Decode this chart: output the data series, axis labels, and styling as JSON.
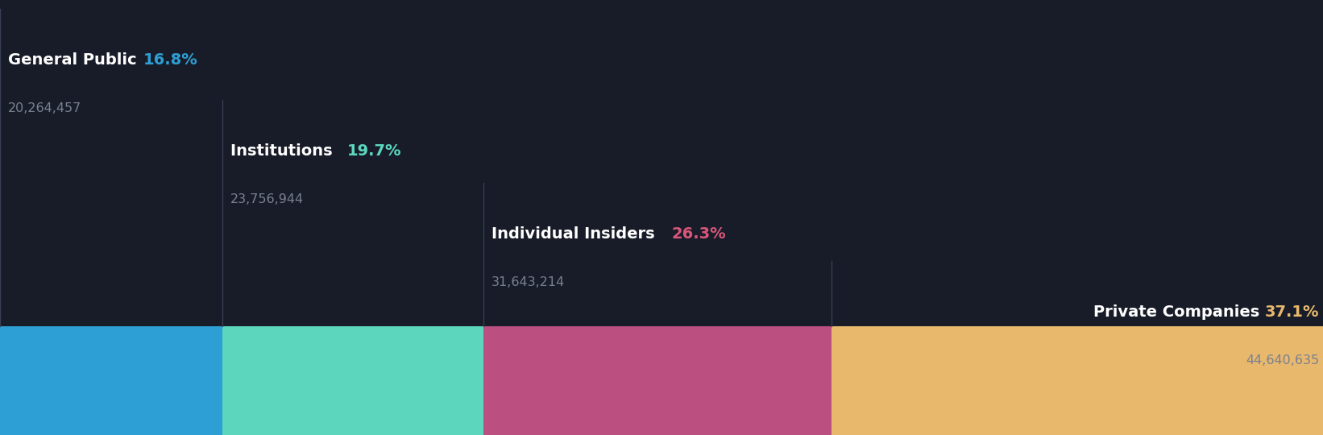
{
  "categories": [
    "General Public",
    "Institutions",
    "Individual Insiders",
    "Private Companies"
  ],
  "percentages": [
    16.8,
    19.7,
    26.3,
    37.1
  ],
  "values": [
    "20,264,457",
    "23,756,944",
    "31,643,214",
    "44,640,635"
  ],
  "bar_colors": [
    "#2e9fd4",
    "#5dd6be",
    "#bb5080",
    "#e8b86d"
  ],
  "pct_colors": [
    "#2e9fd4",
    "#5dd6be",
    "#d9567a",
    "#e8b86d"
  ],
  "background_color": "#171c28",
  "label_color": "#ffffff",
  "value_color": "#7a8090",
  "figsize": [
    16.42,
    5.4
  ],
  "dpi": 100
}
